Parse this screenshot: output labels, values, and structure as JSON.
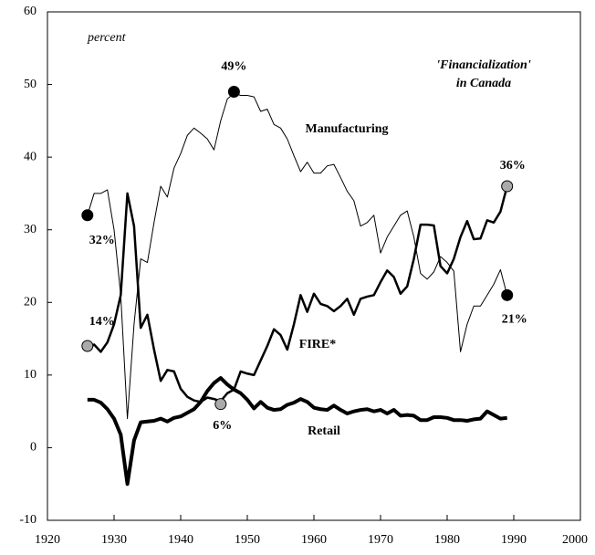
{
  "chart_data": {
    "type": "line",
    "title": "'Financialization'",
    "subtitle": "in Canada",
    "y_label": "percent",
    "x": [
      1926,
      1927,
      1928,
      1929,
      1930,
      1931,
      1932,
      1933,
      1934,
      1935,
      1936,
      1937,
      1938,
      1939,
      1940,
      1941,
      1942,
      1943,
      1944,
      1945,
      1946,
      1947,
      1948,
      1949,
      1950,
      1951,
      1952,
      1953,
      1954,
      1955,
      1956,
      1957,
      1958,
      1959,
      1960,
      1961,
      1962,
      1963,
      1964,
      1965,
      1966,
      1967,
      1968,
      1969,
      1970,
      1971,
      1972,
      1973,
      1974,
      1975,
      1976,
      1977,
      1978,
      1979,
      1980,
      1981,
      1982,
      1983,
      1984,
      1985,
      1986,
      1987,
      1988,
      1989
    ],
    "series": [
      {
        "name": "Manufacturing",
        "color": "#000000",
        "width": 1,
        "values": [
          32,
          35,
          35,
          35.5,
          30,
          21,
          4,
          17,
          26,
          25.5,
          31,
          36,
          34.5,
          38.5,
          40.5,
          43,
          44,
          43.3,
          42.5,
          41,
          45,
          48,
          48.8,
          48.5,
          48.5,
          48.3,
          46.3,
          46.6,
          44.5,
          44,
          42.5,
          40.2,
          38,
          39.3,
          37.8,
          37.8,
          38.8,
          39,
          37.2,
          35.3,
          34,
          30.5,
          31,
          32,
          26.8,
          29,
          30.5,
          32,
          32.6,
          29,
          24,
          23.2,
          24.2,
          26.3,
          25.5,
          24.3,
          13.2,
          17,
          19.5,
          19.5,
          21,
          22.5,
          24.5,
          21
        ]
      },
      {
        "name": "FIRE*",
        "color": "#000000",
        "width": 2.5,
        "values": [
          13.5,
          14.2,
          13.2,
          14.5,
          17,
          21,
          35,
          30.5,
          16.5,
          18.3,
          13.5,
          9.2,
          10.7,
          10.5,
          8.1,
          7,
          6.5,
          6.3,
          6.9,
          6.7,
          6.4,
          7.5,
          8,
          10.5,
          10.2,
          10,
          12,
          14,
          16.3,
          15.5,
          13.5,
          17,
          21,
          18.7,
          21.2,
          19.8,
          19.5,
          18.8,
          19.5,
          20.5,
          18.3,
          20.5,
          20.8,
          21,
          22.8,
          24.4,
          23.5,
          21.2,
          22.2,
          26,
          30.7,
          30.7,
          30.6,
          25,
          24,
          26,
          29,
          31.2,
          28.7,
          28.8,
          31.3,
          31,
          32.5,
          36
        ]
      },
      {
        "name": "Retail",
        "color": "#000000",
        "width": 4,
        "values": [
          6.6,
          6.6,
          6.2,
          5.3,
          4,
          1.8,
          -5,
          1,
          3.5,
          3.6,
          3.7,
          4,
          3.6,
          4.1,
          4.3,
          4.8,
          5.3,
          6.3,
          7.8,
          8.9,
          9.6,
          8.7,
          8,
          7.5,
          6.6,
          5.4,
          6.3,
          5.5,
          5.2,
          5.3,
          5.9,
          6.2,
          6.7,
          6.3,
          5.5,
          5.3,
          5.2,
          5.8,
          5.2,
          4.7,
          5,
          5.2,
          5.3,
          5,
          5.2,
          4.7,
          5.2,
          4.4,
          4.5,
          4.4,
          3.8,
          3.8,
          4.2,
          4.2,
          4.1,
          3.8,
          3.8,
          3.7,
          3.9,
          4,
          5,
          4.5,
          4,
          4.1
        ]
      }
    ],
    "annotations": [
      {
        "x": 1926,
        "y": 32,
        "label": "32%",
        "color": "#000000"
      },
      {
        "x": 1926,
        "y": 14,
        "label": "14%",
        "color": "#aaaaaa"
      },
      {
        "x": 1948,
        "y": 49,
        "label": "49%",
        "color": "#000000"
      },
      {
        "x": 1946,
        "y": 6,
        "label": "6%",
        "color": "#aaaaaa"
      },
      {
        "x": 1989,
        "y": 36,
        "label": "36%",
        "color": "#aaaaaa"
      },
      {
        "x": 1989,
        "y": 21,
        "label": "21%",
        "color": "#000000"
      }
    ],
    "xlim": [
      1920,
      2000
    ],
    "xticks": [
      1920,
      1930,
      1940,
      1950,
      1960,
      1970,
      1980,
      1990,
      2000
    ],
    "ylim": [
      -10,
      60
    ],
    "yticks": [
      -10,
      0,
      10,
      20,
      30,
      40,
      50,
      60
    ]
  }
}
